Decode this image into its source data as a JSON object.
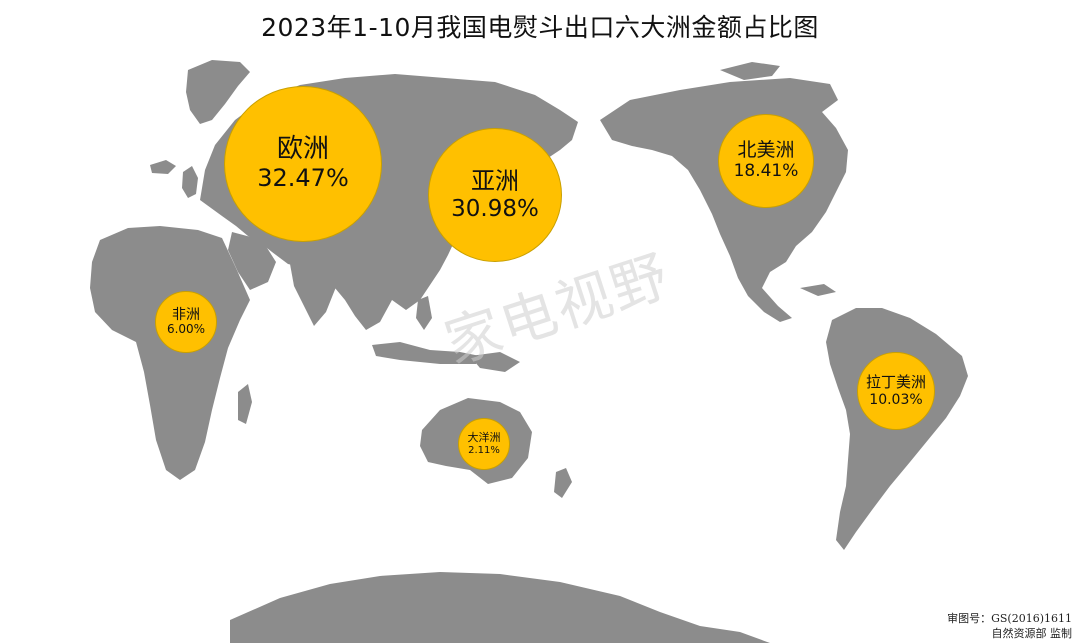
{
  "title": "2023年1-10月我国电熨斗出口六大洲金额占比图",
  "continents": [
    {
      "name": "欧洲",
      "share": "32.47%",
      "value": 32.47
    },
    {
      "name": "亚洲",
      "share": "30.98%",
      "value": 30.98
    },
    {
      "name": "北美洲",
      "share": "18.41%",
      "value": 18.41
    },
    {
      "name": "拉丁美洲",
      "share": "10.03%",
      "value": 10.03
    },
    {
      "name": "非洲",
      "share": "6.00%",
      "value": 6.0
    },
    {
      "name": "大洋洲",
      "share": "2.11%",
      "value": 2.11
    }
  ],
  "watermark": "家电视野",
  "credit": {
    "line1": "审图号：GS(2016)1611",
    "line2": "自然资源部 监制"
  },
  "colors": {
    "bubble": "#FFC000",
    "land": "#8c8c8c",
    "background": "#ffffff"
  }
}
